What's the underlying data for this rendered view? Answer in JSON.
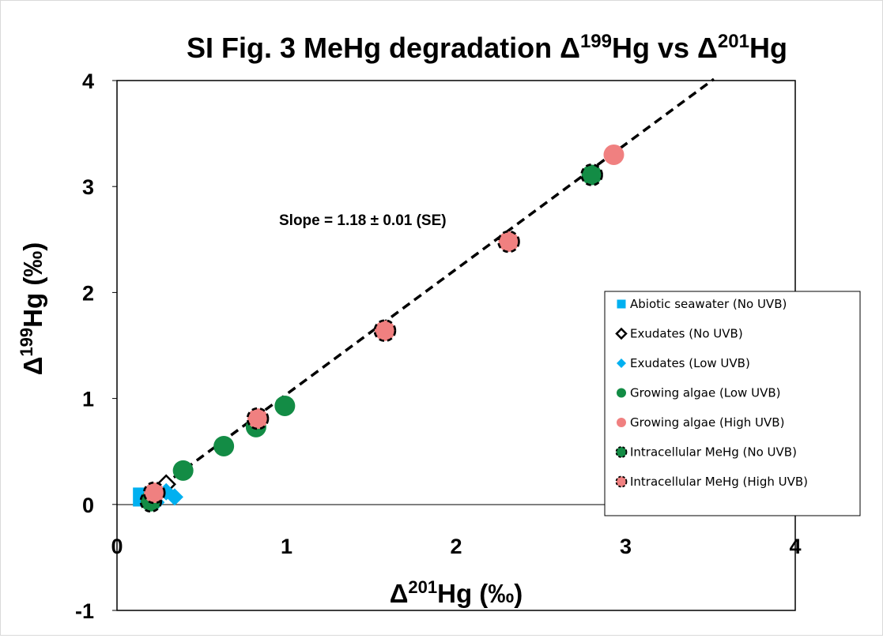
{
  "chart_data": {
    "type": "scatter",
    "title": "SI Fig. 3 MeHg degradation Δ¹⁹⁹Hg vs Δ²⁰¹Hg",
    "title_parts": {
      "a": "SI Fig. 3 MeHg degradation Δ",
      "b": "199",
      "c": "Hg vs Δ",
      "d": "201",
      "e": "Hg"
    },
    "xlabel": "Δ²⁰¹Hg (‰)",
    "xlabel_parts": {
      "a": "Δ",
      "b": "201",
      "c": "Hg (‰)"
    },
    "ylabel": "Δ¹⁹⁹Hg (‰)",
    "ylabel_parts": {
      "a": "Δ",
      "b": "199",
      "c": "Hg (‰)"
    },
    "xlim": [
      0,
      4
    ],
    "ylim": [
      -1,
      4
    ],
    "xticks": [
      "0",
      "1",
      "2",
      "3",
      "4"
    ],
    "yticks": [
      "-1",
      "0",
      "1",
      "2",
      "3",
      "4"
    ],
    "grid": false,
    "legend_position": "right",
    "annotation": "Slope =  1.18 ± 0.01 (SE)",
    "fit_line": {
      "style": "dashed",
      "color": "#000000",
      "slope": 1.18,
      "intercept": -0.14,
      "x_range": [
        0.2,
        3.52
      ]
    },
    "series": [
      {
        "name": "Abiotic seawater (No UVB)",
        "marker": "square",
        "color": "#00b0f0",
        "points": [
          [
            0.15,
            0.07
          ]
        ]
      },
      {
        "name": "Exudates (No UVB)",
        "marker": "diamond-outline",
        "color": "#000000",
        "points": [
          [
            0.29,
            0.19
          ]
        ]
      },
      {
        "name": "Exudates (Low UVB)",
        "marker": "diamond",
        "color": "#00b0f0",
        "points": [
          [
            0.23,
            0.02
          ],
          [
            0.34,
            0.07
          ],
          [
            0.29,
            0.12
          ]
        ]
      },
      {
        "name": "Growing algae (Low UVB)",
        "marker": "circle",
        "color": "#138c45",
        "points": [
          [
            0.2,
            0.04
          ],
          [
            0.39,
            0.32
          ],
          [
            0.63,
            0.55
          ],
          [
            0.82,
            0.73
          ],
          [
            0.99,
            0.93
          ]
        ]
      },
      {
        "name": "Growing algae (High UVB)",
        "marker": "circle",
        "color": "#f08080",
        "points": [
          [
            2.93,
            3.3
          ]
        ]
      },
      {
        "name": "Intracellular MeHg (No UVB)",
        "marker": "circle-dashed",
        "color": "#138c45",
        "points": [
          [
            0.2,
            0.03
          ],
          [
            2.8,
            3.11
          ]
        ]
      },
      {
        "name": "Intracellular MeHg (High UVB)",
        "marker": "circle-dashed",
        "color": "#f08080",
        "points": [
          [
            0.22,
            0.11
          ],
          [
            0.83,
            0.81
          ],
          [
            1.58,
            1.64
          ],
          [
            2.31,
            2.48
          ]
        ]
      }
    ]
  }
}
